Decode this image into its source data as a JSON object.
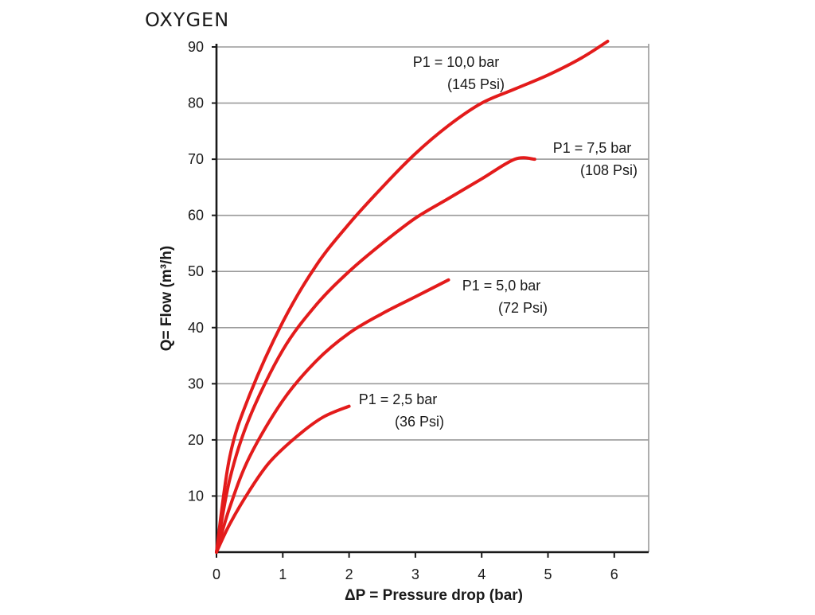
{
  "chart_data": {
    "type": "line",
    "title": "OXYGEN",
    "xlabel": "ΔP = Pressure drop (bar)",
    "ylabel": "Q= Flow (m³/h)",
    "xlim": [
      0,
      6.5
    ],
    "ylim": [
      0,
      90
    ],
    "xticks": [
      0,
      1,
      2,
      3,
      4,
      5,
      6
    ],
    "yticks": [
      10,
      20,
      30,
      40,
      50,
      60,
      70,
      80,
      90
    ],
    "grid": true,
    "series": [
      {
        "name": "P1 = 2,5 bar",
        "label_lines": [
          "P1 = 2,5 bar",
          "(36 Psi)"
        ],
        "points": [
          [
            0,
            0
          ],
          [
            0.2,
            5
          ],
          [
            0.5,
            11
          ],
          [
            0.8,
            16
          ],
          [
            1.2,
            20.5
          ],
          [
            1.6,
            24
          ],
          [
            2.0,
            26
          ]
        ]
      },
      {
        "name": "P1 = 5,0 bar",
        "label_lines": [
          "P1 = 5,0 bar",
          "(72 Psi)"
        ],
        "points": [
          [
            0,
            0
          ],
          [
            0.2,
            8
          ],
          [
            0.5,
            17
          ],
          [
            1.0,
            27
          ],
          [
            1.5,
            34
          ],
          [
            2.0,
            39
          ],
          [
            2.5,
            42.5
          ],
          [
            3.0,
            45.5
          ],
          [
            3.5,
            48.5
          ]
        ]
      },
      {
        "name": "P1 = 7,5 bar",
        "label_lines": [
          "P1 = 7,5 bar",
          "(108 Psi)"
        ],
        "points": [
          [
            0,
            0
          ],
          [
            0.2,
            13
          ],
          [
            0.5,
            24
          ],
          [
            1.0,
            36
          ],
          [
            1.5,
            44
          ],
          [
            2.0,
            50
          ],
          [
            2.5,
            55
          ],
          [
            3.0,
            59.5
          ],
          [
            3.5,
            63
          ],
          [
            4.0,
            66.5
          ],
          [
            4.5,
            70
          ],
          [
            4.8,
            70
          ]
        ]
      },
      {
        "name": "P1 = 10,0 bar",
        "label_lines": [
          "P1 = 10,0 bar",
          "(145 Psi)"
        ],
        "points": [
          [
            0,
            0
          ],
          [
            0.2,
            17
          ],
          [
            0.5,
            28
          ],
          [
            1.0,
            41
          ],
          [
            1.5,
            51
          ],
          [
            2.0,
            58.5
          ],
          [
            2.5,
            65
          ],
          [
            3.0,
            71
          ],
          [
            3.5,
            76
          ],
          [
            4.0,
            80
          ],
          [
            4.5,
            82.5
          ],
          [
            5.0,
            85
          ],
          [
            5.5,
            88
          ],
          [
            5.9,
            91
          ]
        ]
      }
    ]
  },
  "colors": {
    "series": "#e31b1b",
    "grid": "#9a9a9a",
    "axis": "#1a1a1a"
  }
}
